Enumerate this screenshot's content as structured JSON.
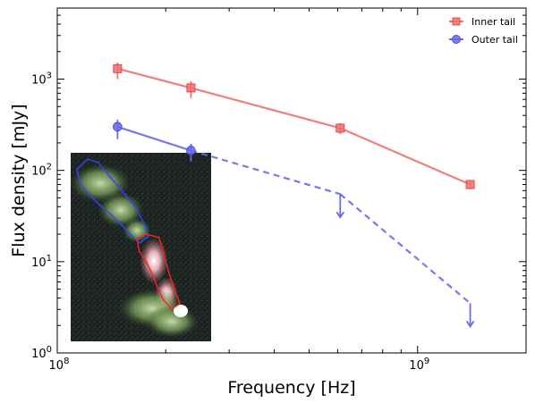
{
  "chart_data": {
    "type": "line",
    "xscale": "log",
    "yscale": "log",
    "xlabel": "Frequency [Hz]",
    "ylabel": "Flux density [mJy]",
    "xlim": [
      100000000.0,
      2000000000.0
    ],
    "ylim": [
      1,
      6000
    ],
    "grid": false,
    "legend_position": "top-right",
    "x_ticks": [
      {
        "value": 100000000.0,
        "base": "10",
        "exp": "8"
      },
      {
        "value": 1000000000.0,
        "base": "10",
        "exp": "9"
      }
    ],
    "y_ticks": [
      {
        "value": 1,
        "base": "10",
        "exp": "0"
      },
      {
        "value": 10,
        "base": "10",
        "exp": "1"
      },
      {
        "value": 100,
        "base": "10",
        "exp": "2"
      },
      {
        "value": 1000,
        "base": "10",
        "exp": "3"
      }
    ],
    "series": [
      {
        "name": "Inner tail",
        "color": "#f07070",
        "marker": "square",
        "x": [
          147000000.0,
          235000000.0,
          610000000.0,
          1400000000.0
        ],
        "y": [
          1300,
          800,
          290,
          70
        ],
        "err": [
          [
            300,
            220
          ],
          [
            180,
            150
          ],
          [
            40,
            40
          ],
          [
            8,
            8
          ]
        ],
        "upper_limit": [
          false,
          false,
          false,
          false
        ]
      },
      {
        "name": "Outer tail",
        "color": "#6868f0",
        "marker": "circle",
        "x": [
          147000000.0,
          235000000.0,
          610000000.0,
          1400000000.0
        ],
        "y": [
          300,
          165,
          55,
          3.5
        ],
        "err": [
          [
            80,
            60
          ],
          [
            40,
            30
          ],
          [
            0,
            0
          ],
          [
            0,
            0
          ]
        ],
        "upper_limit": [
          false,
          false,
          true,
          true
        ]
      }
    ]
  },
  "inset": {
    "description_icon": "radio-map-inset"
  }
}
